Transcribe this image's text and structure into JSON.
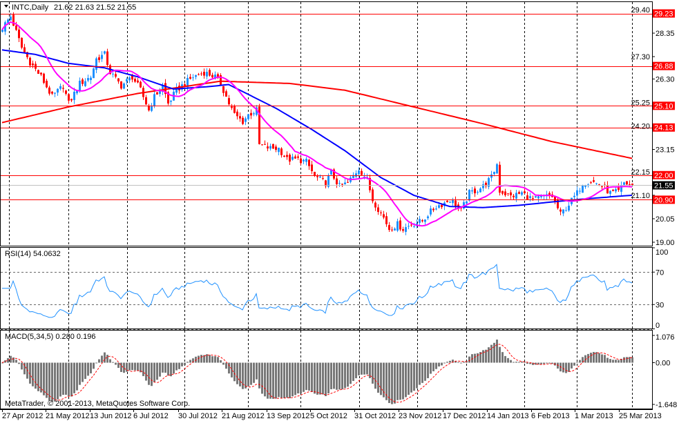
{
  "header": {
    "symbol": "INTC,Daily",
    "ohlc": "21.62 21.63 21.52 21.55"
  },
  "colors": {
    "bull": "#1e90ff",
    "bear": "#ff0000",
    "ma_fast": "#ff00ff",
    "ma_mid": "#0000ff",
    "ma_slow": "#ff0000",
    "level": "#ff0000",
    "rsi": "#1e90ff",
    "macd_hist": "#777777",
    "macd_signal": "#ff0000",
    "grid": "#000000"
  },
  "price_axis": {
    "ticks": [
      "29.40",
      "28.35",
      "27.30",
      "26.30",
      "25.25",
      "24.20",
      "23.15",
      "22.15",
      "21.10",
      "20.05",
      "19.00"
    ],
    "range": [
      19.0,
      29.4
    ]
  },
  "levels": [
    29.23,
    26.88,
    25.1,
    24.13,
    22.0,
    20.9
  ],
  "current_price": 21.55,
  "rsi": {
    "label": "RSI(14) 54.0632",
    "ticks": [
      "100",
      "70",
      "30",
      "0"
    ],
    "period": 14
  },
  "macd": {
    "label": "MACD(5,34,5) 0.280 0.196",
    "ticks": [
      "1.076",
      "0.00",
      "-1.648"
    ],
    "range": [
      -1.648,
      1.076
    ]
  },
  "date_axis": [
    "27 Apr 2012",
    "21 May 2012",
    "13 Jun 2012",
    "6 Jul 2012",
    "30 Jul 2012",
    "21 Aug 2012",
    "13 Sep 2012",
    "5 Oct 2012",
    "31 Oct 2012",
    "23 Nov 2012",
    "17 Dec 2012",
    "14 Jan 2013",
    "6 Feb 2013",
    "1 Mar 2013",
    "25 Mar 2013"
  ],
  "copyright": "MetaTrader, © 2001-2013, MetaQuotes Software Corp.",
  "chart_data": {
    "type": "candlestick",
    "bars": 229,
    "close_keypoints": [
      [
        0,
        28.6
      ],
      [
        3,
        29.1
      ],
      [
        7,
        27.7
      ],
      [
        10,
        27.05
      ],
      [
        14,
        26.4
      ],
      [
        18,
        25.5
      ],
      [
        22,
        26.0
      ],
      [
        24,
        25.2
      ],
      [
        28,
        26.1
      ],
      [
        32,
        26.4
      ],
      [
        34,
        27.2
      ],
      [
        37,
        27.4
      ],
      [
        39,
        26.6
      ],
      [
        43,
        26.0
      ],
      [
        47,
        26.4
      ],
      [
        50,
        25.8
      ],
      [
        53,
        24.9
      ],
      [
        55,
        25.5
      ],
      [
        58,
        26.0
      ],
      [
        60,
        25.2
      ],
      [
        63,
        25.8
      ],
      [
        65,
        26.0
      ],
      [
        69,
        26.4
      ],
      [
        73,
        26.6
      ],
      [
        77,
        26.4
      ],
      [
        79,
        26.1
      ],
      [
        82,
        25.2
      ],
      [
        84,
        24.7
      ],
      [
        87,
        24.4
      ],
      [
        89,
        24.7
      ],
      [
        92,
        24.9
      ],
      [
        93,
        23.35
      ],
      [
        97,
        23.2
      ],
      [
        100,
        23.2
      ],
      [
        103,
        22.7
      ],
      [
        107,
        22.7
      ],
      [
        110,
        22.6
      ],
      [
        113,
        21.95
      ],
      [
        117,
        21.65
      ],
      [
        119,
        22.1
      ],
      [
        122,
        21.5
      ],
      [
        125,
        21.65
      ],
      [
        129,
        22.3
      ],
      [
        132,
        21.8
      ],
      [
        134,
        20.9
      ],
      [
        138,
        20.1
      ],
      [
        140,
        19.6
      ],
      [
        143,
        19.8
      ],
      [
        145,
        19.6
      ],
      [
        148,
        19.8
      ],
      [
        152,
        19.95
      ],
      [
        154,
        20.25
      ],
      [
        157,
        20.6
      ],
      [
        159,
        20.7
      ],
      [
        162,
        20.9
      ],
      [
        164,
        20.7
      ],
      [
        166,
        20.4
      ],
      [
        169,
        21.2
      ],
      [
        172,
        21.35
      ],
      [
        174,
        21.5
      ],
      [
        177,
        21.9
      ],
      [
        179,
        22.5
      ],
      [
        180,
        21.3
      ],
      [
        184,
        21.05
      ],
      [
        188,
        21.2
      ],
      [
        192,
        20.9
      ],
      [
        197,
        21.05
      ],
      [
        199,
        21.05
      ],
      [
        202,
        20.25
      ],
      [
        205,
        20.7
      ],
      [
        208,
        21.2
      ],
      [
        210,
        21.65
      ],
      [
        213,
        21.75
      ],
      [
        217,
        21.5
      ],
      [
        220,
        21.2
      ],
      [
        223,
        21.25
      ],
      [
        225,
        21.65
      ],
      [
        228,
        21.55
      ]
    ],
    "ma_fast_period": 14,
    "ma_mid_keypoints": [
      [
        0,
        27.6
      ],
      [
        12,
        27.4
      ],
      [
        24,
        27.0
      ],
      [
        37,
        26.8
      ],
      [
        49,
        26.4
      ],
      [
        62,
        25.85
      ],
      [
        74,
        25.95
      ],
      [
        82,
        26.05
      ],
      [
        99,
        25.0
      ],
      [
        112,
        24.05
      ],
      [
        124,
        23.1
      ],
      [
        137,
        21.9
      ],
      [
        149,
        21.1
      ],
      [
        162,
        20.6
      ],
      [
        174,
        20.55
      ],
      [
        187,
        20.65
      ],
      [
        199,
        20.8
      ],
      [
        212,
        20.95
      ],
      [
        228,
        21.1
      ]
    ],
    "ma_slow_keypoints": [
      [
        0,
        24.35
      ],
      [
        24,
        25.05
      ],
      [
        49,
        25.65
      ],
      [
        79,
        26.2
      ],
      [
        104,
        26.1
      ],
      [
        124,
        25.8
      ],
      [
        149,
        25.05
      ],
      [
        174,
        24.3
      ],
      [
        199,
        23.5
      ],
      [
        228,
        22.75
      ]
    ]
  }
}
